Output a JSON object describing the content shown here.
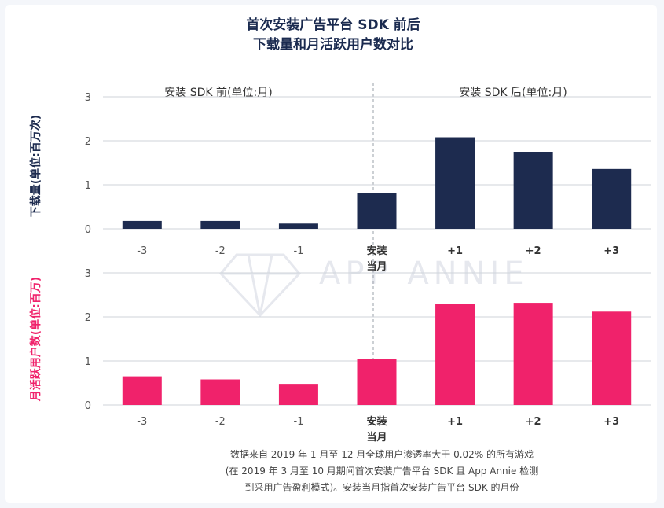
{
  "colors": {
    "navy": "#1d2b4f",
    "pink": "#f0226b",
    "grid": "#cfd3da"
  },
  "title": [
    "首次安装广告平台 SDK 前后",
    "下载量和月活跃用户数对比"
  ],
  "section_before": "安装 SDK 前(单位:月)",
  "section_after": "安装 SDK 后(单位:月)",
  "watermark": "APP ANNIE",
  "note": [
    "数据来自 2019 年 1 月至 12 月全球用户渗透率大于 0.02% 的所有游戏",
    "(在 2019 年 3 月至 10 月期间首次安装广告平台 SDK 且 App Annie 检测",
    "到采用广告盈利模式)。安装当月指首次安装广告平台 SDK 的月份"
  ],
  "chart_data": [
    {
      "type": "bar",
      "ylabel": "下载量(单位:百万次)",
      "categories": [
        "-3",
        "-2",
        "-1",
        "安装\n当月",
        "+1",
        "+2",
        "+3"
      ],
      "values": [
        0.18,
        0.18,
        0.12,
        0.82,
        2.08,
        1.75,
        1.36
      ],
      "ylim": [
        0,
        3
      ],
      "yticks": [
        0,
        1,
        2,
        3
      ],
      "color": "#1d2b4f"
    },
    {
      "type": "bar",
      "ylabel": "月活跃用户数(单位:百万)",
      "categories": [
        "-3",
        "-2",
        "-1",
        "安装\n当月",
        "+1",
        "+2",
        "+3"
      ],
      "values": [
        0.65,
        0.58,
        0.48,
        1.05,
        2.3,
        2.32,
        2.12
      ],
      "ylim": [
        0,
        3
      ],
      "yticks": [
        0,
        1,
        2,
        3
      ],
      "color": "#f0226b"
    }
  ]
}
